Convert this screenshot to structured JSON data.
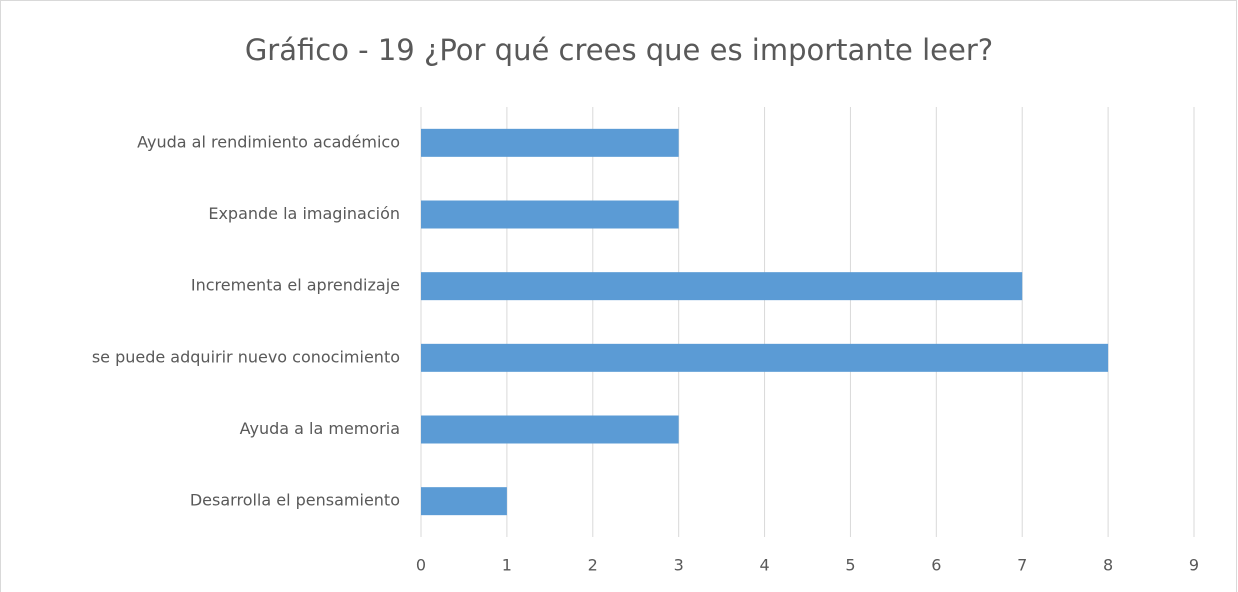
{
  "chart_data": {
    "type": "bar",
    "orientation": "horizontal",
    "title": "Gráfico - 19 ¿Por qué crees que es importante leer?",
    "categories": [
      "Ayuda al rendimiento académico",
      "Expande la imaginación",
      "Incrementa el aprendizaje",
      "se puede adquirir nuevo conocimiento",
      "Ayuda a la memoria",
      "Desarrolla el pensamiento"
    ],
    "values": [
      3,
      3,
      7,
      8,
      3,
      1
    ],
    "color": "#5b9bd5",
    "xlim": [
      0,
      9
    ],
    "xticks": [
      0,
      1,
      2,
      3,
      4,
      5,
      6,
      7,
      8,
      9
    ],
    "grid": true
  }
}
